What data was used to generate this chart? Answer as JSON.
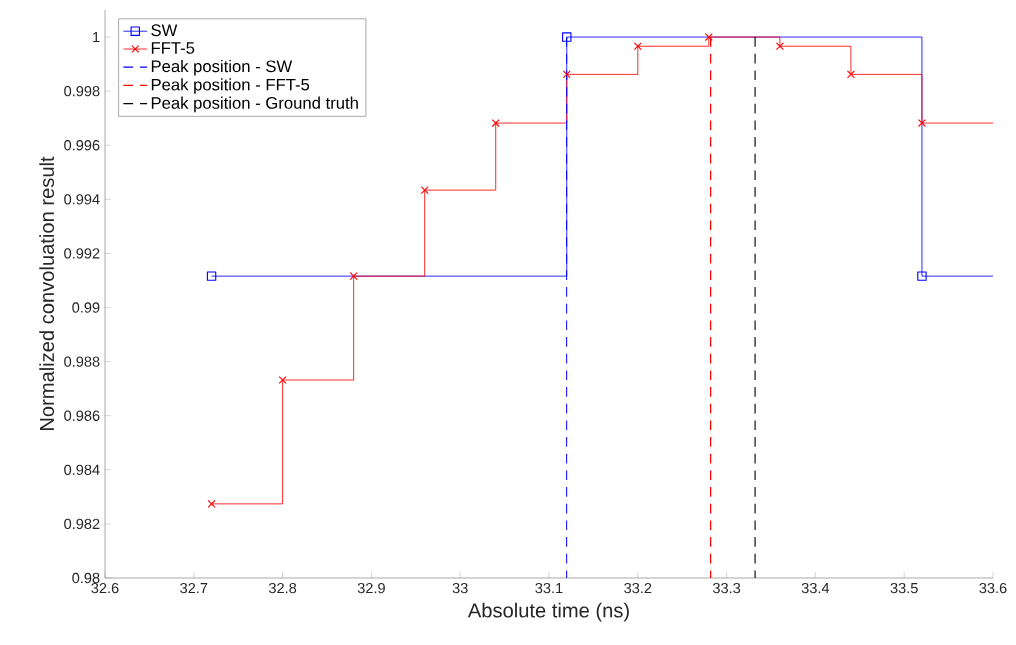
{
  "chart_data": {
    "type": "step",
    "xlabel": "Absolute time (ns)",
    "ylabel": "Normalized convoluation result",
    "xlim": [
      32.6,
      33.6
    ],
    "ylim": [
      0.98,
      1.001
    ],
    "xticks": [
      32.6,
      32.7,
      32.8,
      32.9,
      33,
      33.1,
      33.2,
      33.3,
      33.4,
      33.5,
      33.6
    ],
    "yticks": [
      0.98,
      0.982,
      0.984,
      0.986,
      0.988,
      0.99,
      0.992,
      0.994,
      0.996,
      0.998,
      1
    ],
    "grid": false,
    "legend": "top left",
    "series": [
      {
        "name": "SW",
        "color": "#0000ff",
        "marker": "square",
        "x": [
          32.72,
          33.12,
          33.52
        ],
        "values": [
          0.99116,
          1.0,
          0.99116
        ]
      },
      {
        "name": "FFT-5",
        "color": "#ff0000",
        "marker": "cross",
        "x": [
          32.72,
          32.8,
          32.88,
          32.96,
          33.04,
          33.12,
          33.2,
          33.28,
          33.36,
          33.44,
          33.52
        ],
        "values": [
          0.98274,
          0.98732,
          0.99116,
          0.99434,
          0.99682,
          0.99862,
          0.99966,
          1.0,
          0.99966,
          0.99862,
          0.99682
        ]
      },
      {
        "type": "line",
        "color": "#0000ff",
        "x": [
          33.52,
          33.6
        ],
        "values": [
          0.99116,
          0.99116
        ]
      },
      {
        "type": "line",
        "color": "#ff0000",
        "x": [
          33.52,
          33.6
        ],
        "values": [
          0.99682,
          0.99682
        ]
      },
      {
        "name": "Peak position - SW",
        "type": "line",
        "line_style": "dashed",
        "color": "#0000ff",
        "x": [
          33.12,
          33.12
        ],
        "values": [
          0.98,
          1.0
        ]
      },
      {
        "name": "Peak position - FFT-5",
        "type": "line",
        "line_style": "dashed",
        "color": "#ff0000",
        "x": [
          33.282,
          33.282
        ],
        "values": [
          0.98,
          1.0
        ]
      },
      {
        "name": "Peak position - Ground truth",
        "type": "line",
        "line_style": "dashed",
        "color": "#000000",
        "x": [
          33.332,
          33.332
        ],
        "values": [
          0.98,
          1.0
        ]
      }
    ]
  }
}
